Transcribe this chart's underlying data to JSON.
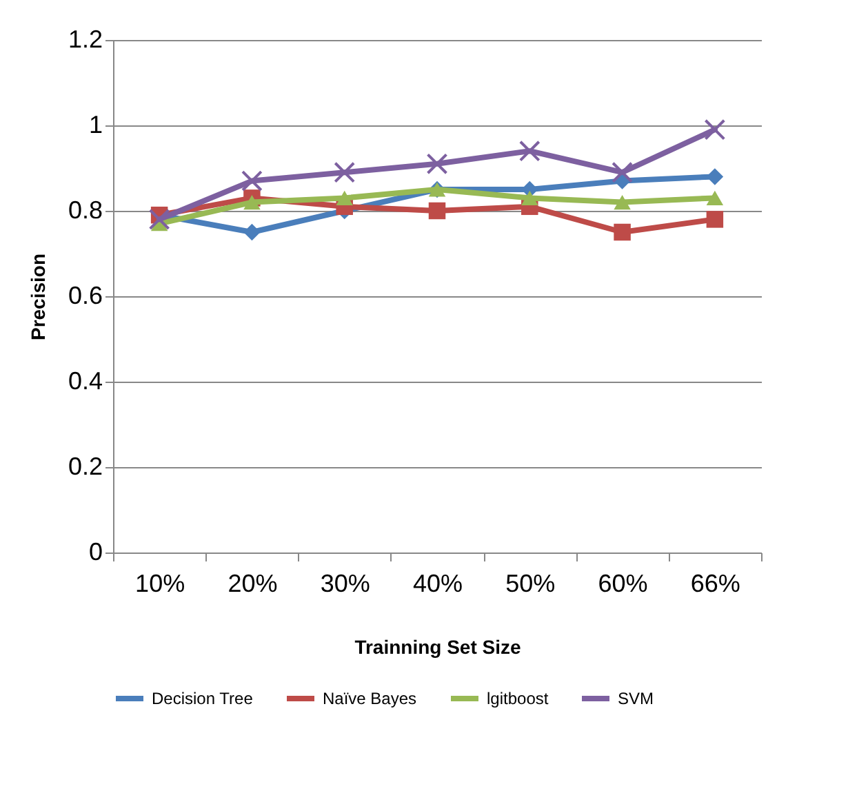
{
  "chart_data": {
    "type": "line",
    "xlabel": "Trainning Set Size",
    "ylabel": "Precision",
    "categories": [
      "10%",
      "20%",
      "30%",
      "40%",
      "50%",
      "60%",
      "66%"
    ],
    "ylim": [
      0,
      1.2
    ],
    "yticks": [
      0,
      0.2,
      0.4,
      0.6,
      0.8,
      1,
      1.2
    ],
    "grid": "y",
    "legend": "bottom",
    "line_style": "solid",
    "series": [
      {
        "name": "Decision Tree",
        "color": "#4a7ebb",
        "marker": "diamond",
        "values": [
          0.79,
          0.75,
          0.8,
          0.85,
          0.85,
          0.87,
          0.88
        ]
      },
      {
        "name": "Naïve Bayes",
        "color": "#be4b48",
        "marker": "square",
        "values": [
          0.79,
          0.83,
          0.81,
          0.8,
          0.81,
          0.75,
          0.78
        ]
      },
      {
        "name": "lgitboost",
        "color": "#98b954",
        "marker": "triangle",
        "values": [
          0.77,
          0.82,
          0.83,
          0.85,
          0.83,
          0.82,
          0.83
        ]
      },
      {
        "name": "SVM",
        "color": "#7d60a0",
        "marker": "cross",
        "values": [
          0.78,
          0.87,
          0.89,
          0.91,
          0.94,
          0.89,
          0.99
        ]
      }
    ]
  }
}
